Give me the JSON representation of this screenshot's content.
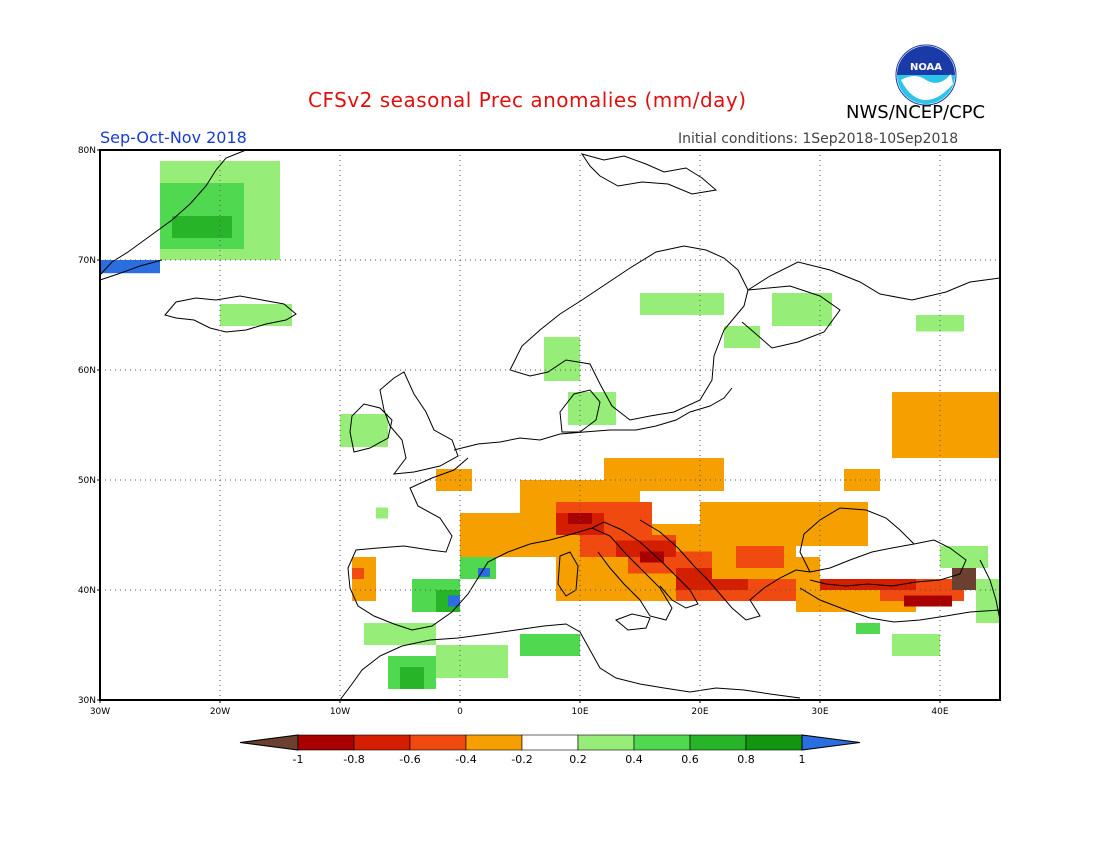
{
  "header": {
    "title": "CFSv2 seasonal Prec anomalies (mm/day)",
    "org": "NWS/NCEP/CPC",
    "season": "Sep-Oct-Nov 2018",
    "initial_conditions": "Initial conditions: 1Sep2018-10Sep2018",
    "logo_text": "NOAA"
  },
  "map": {
    "region": "Europe",
    "lon_range": [
      -30,
      45
    ],
    "lat_range": [
      30,
      80
    ],
    "lat_ticks": [
      "30N",
      "40N",
      "50N",
      "60N",
      "70N",
      "80N"
    ],
    "lon_ticks": [
      "30W",
      "20W",
      "10W",
      "0",
      "10E",
      "20E",
      "30E",
      "40E"
    ],
    "grid": "dotted"
  },
  "legend": {
    "labels": [
      "-1",
      "-0.8",
      "-0.6",
      "-0.4",
      "-0.2",
      "0.2",
      "0.4",
      "0.6",
      "0.8",
      "1"
    ],
    "colors": [
      "#6b4030",
      "#a80000",
      "#d41e00",
      "#f04a10",
      "#f5a000",
      "#ffffff",
      "#96ee78",
      "#50d850",
      "#28b428",
      "#129612",
      "#2a6ee0"
    ]
  },
  "anomaly_classes": {
    "dry_lt_-1": "#6b4030",
    "dry_-0.8": "#a80000",
    "dry_-0.6": "#d41e00",
    "dry_-0.4": "#f04a10",
    "dry_-0.2": "#f5a000",
    "wet_0.2": "#96ee78",
    "wet_0.4": "#50d850",
    "wet_0.6": "#28b428",
    "wet_0.8": "#129612",
    "wet_gt_1": "#2a6ee0"
  }
}
